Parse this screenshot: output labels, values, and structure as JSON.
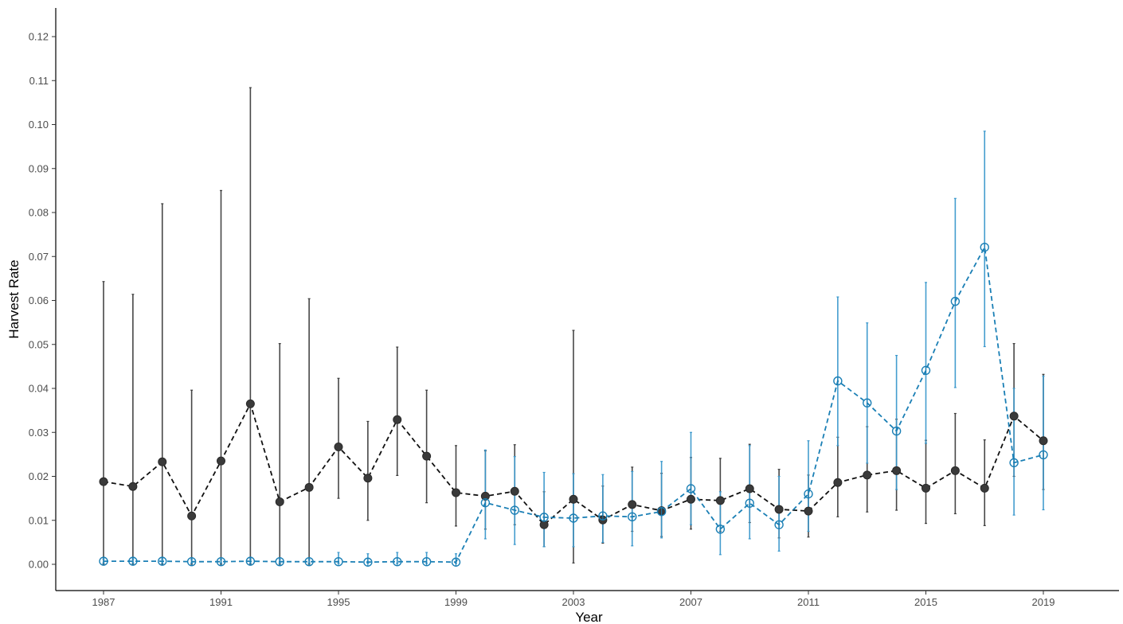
{
  "chart_data": {
    "type": "line",
    "title": "",
    "xlabel": "Year",
    "ylabel": "Harvest Rate",
    "xlim": [
      1986.4,
      1989.0
    ],
    "x_range": [
      1986,
      2022
    ],
    "ylim": [
      -0.006,
      0.126
    ],
    "x_ticks": [
      1987,
      1991,
      1995,
      1999,
      2003,
      2007,
      2011,
      2015,
      2019
    ],
    "x_tick_labels": [
      "1987",
      "1991",
      "1995",
      "1999",
      "2003",
      "2007",
      "2011",
      "2015",
      "2019"
    ],
    "y_ticks": [
      0.0,
      0.01,
      0.02,
      0.03,
      0.04,
      0.05,
      0.06,
      0.07,
      0.08,
      0.09,
      0.1,
      0.11,
      0.12
    ],
    "y_tick_labels": [
      "0.00",
      "0.01",
      "0.02",
      "0.03",
      "0.04",
      "0.05",
      "0.06",
      "0.07",
      "0.08",
      "0.09",
      "0.10",
      "0.11",
      "0.12"
    ],
    "grid": false,
    "legend": "none",
    "series": [
      {
        "color": "#333333",
        "marker": "filled-circle",
        "line_style": "dashed",
        "points": [
          {
            "x": 1987,
            "y": 0.0188,
            "low": 0.0,
            "high": 0.0643
          },
          {
            "x": 1988,
            "y": 0.0177,
            "low": 0.0,
            "high": 0.0614
          },
          {
            "x": 1989,
            "y": 0.0233,
            "low": 0.0,
            "high": 0.082
          },
          {
            "x": 1990,
            "y": 0.011,
            "low": 0.0,
            "high": 0.0396
          },
          {
            "x": 1991,
            "y": 0.0235,
            "low": 0.0,
            "high": 0.085
          },
          {
            "x": 1992,
            "y": 0.0365,
            "low": 0.0,
            "high": 0.1084
          },
          {
            "x": 1993,
            "y": 0.0142,
            "low": 0.0,
            "high": 0.0502
          },
          {
            "x": 1994,
            "y": 0.0175,
            "low": 0.0,
            "high": 0.0604
          },
          {
            "x": 1995,
            "y": 0.0267,
            "low": 0.015,
            "high": 0.0423
          },
          {
            "x": 1996,
            "y": 0.0196,
            "low": 0.01,
            "high": 0.0325
          },
          {
            "x": 1997,
            "y": 0.0329,
            "low": 0.0202,
            "high": 0.0494
          },
          {
            "x": 1998,
            "y": 0.0246,
            "low": 0.014,
            "high": 0.0396
          },
          {
            "x": 1999,
            "y": 0.0163,
            "low": 0.0087,
            "high": 0.027
          },
          {
            "x": 2000,
            "y": 0.0155,
            "low": 0.008,
            "high": 0.0258
          },
          {
            "x": 2001,
            "y": 0.0166,
            "low": 0.009,
            "high": 0.0272
          },
          {
            "x": 2002,
            "y": 0.009,
            "low": 0.004,
            "high": 0.0165
          },
          {
            "x": 2003,
            "y": 0.0148,
            "low": 0.0003,
            "high": 0.0532
          },
          {
            "x": 2004,
            "y": 0.0101,
            "low": 0.0048,
            "high": 0.0178
          },
          {
            "x": 2005,
            "y": 0.0136,
            "low": 0.0075,
            "high": 0.0221
          },
          {
            "x": 2006,
            "y": 0.0122,
            "low": 0.0063,
            "high": 0.0207
          },
          {
            "x": 2007,
            "y": 0.0148,
            "low": 0.008,
            "high": 0.0243
          },
          {
            "x": 2008,
            "y": 0.0145,
            "low": 0.0075,
            "high": 0.0241
          },
          {
            "x": 2009,
            "y": 0.0172,
            "low": 0.0095,
            "high": 0.0273
          },
          {
            "x": 2010,
            "y": 0.0125,
            "low": 0.006,
            "high": 0.0216
          },
          {
            "x": 2011,
            "y": 0.0121,
            "low": 0.0062,
            "high": 0.0203
          },
          {
            "x": 2012,
            "y": 0.0186,
            "low": 0.0108,
            "high": 0.0289
          },
          {
            "x": 2013,
            "y": 0.0203,
            "low": 0.0119,
            "high": 0.0313
          },
          {
            "x": 2014,
            "y": 0.0213,
            "low": 0.0123,
            "high": 0.033
          },
          {
            "x": 2015,
            "y": 0.0173,
            "low": 0.0093,
            "high": 0.0282
          },
          {
            "x": 2016,
            "y": 0.0213,
            "low": 0.0115,
            "high": 0.0343
          },
          {
            "x": 2017,
            "y": 0.0173,
            "low": 0.0088,
            "high": 0.0283
          },
          {
            "x": 2018,
            "y": 0.0337,
            "low": 0.02,
            "high": 0.0502
          },
          {
            "x": 2019,
            "y": 0.0281,
            "low": 0.017,
            "high": 0.0432
          }
        ]
      },
      {
        "color": "#1a7fb5",
        "marker": "open-circle",
        "line_style": "dashed",
        "points": [
          {
            "x": 1987,
            "y": 0.0007,
            "low": 0.0003,
            "high": 0.0012
          },
          {
            "x": 1988,
            "y": 0.0007,
            "low": 0.0003,
            "high": 0.0012
          },
          {
            "x": 1989,
            "y": 0.0007,
            "low": 0.0003,
            "high": 0.0012
          },
          {
            "x": 1990,
            "y": 0.0006,
            "low": 0.0003,
            "high": 0.0011
          },
          {
            "x": 1991,
            "y": 0.0006,
            "low": 0.0003,
            "high": 0.0011
          },
          {
            "x": 1992,
            "y": 0.0007,
            "low": 0.0003,
            "high": 0.0012
          },
          {
            "x": 1993,
            "y": 0.0006,
            "low": 0.0003,
            "high": 0.0011
          },
          {
            "x": 1994,
            "y": 0.0006,
            "low": 0.0003,
            "high": 0.0011
          },
          {
            "x": 1995,
            "y": 0.0006,
            "low": 0.0002,
            "high": 0.0027
          },
          {
            "x": 1996,
            "y": 0.0005,
            "low": 0.0002,
            "high": 0.0024
          },
          {
            "x": 1997,
            "y": 0.0006,
            "low": 0.0002,
            "high": 0.0027
          },
          {
            "x": 1998,
            "y": 0.0006,
            "low": 0.0002,
            "high": 0.0027
          },
          {
            "x": 1999,
            "y": 0.0005,
            "low": 0.0002,
            "high": 0.0024
          },
          {
            "x": 2000,
            "y": 0.014,
            "low": 0.0058,
            "high": 0.026
          },
          {
            "x": 2001,
            "y": 0.0123,
            "low": 0.0045,
            "high": 0.0245
          },
          {
            "x": 2002,
            "y": 0.0107,
            "low": 0.004,
            "high": 0.0209
          },
          {
            "x": 2003,
            "y": 0.0105,
            "low": 0.004,
            "high": 0.0206
          },
          {
            "x": 2004,
            "y": 0.011,
            "low": 0.005,
            "high": 0.0204
          },
          {
            "x": 2005,
            "y": 0.0108,
            "low": 0.0042,
            "high": 0.0211
          },
          {
            "x": 2006,
            "y": 0.012,
            "low": 0.006,
            "high": 0.0234
          },
          {
            "x": 2007,
            "y": 0.0172,
            "low": 0.009,
            "high": 0.03
          },
          {
            "x": 2008,
            "y": 0.008,
            "low": 0.0022,
            "high": 0.0165
          },
          {
            "x": 2009,
            "y": 0.0139,
            "low": 0.0058,
            "high": 0.027
          },
          {
            "x": 2010,
            "y": 0.009,
            "low": 0.003,
            "high": 0.02
          },
          {
            "x": 2011,
            "y": 0.016,
            "low": 0.0075,
            "high": 0.0281
          },
          {
            "x": 2012,
            "y": 0.0417,
            "low": 0.027,
            "high": 0.0608
          },
          {
            "x": 2013,
            "y": 0.0367,
            "low": 0.023,
            "high": 0.0549
          },
          {
            "x": 2014,
            "y": 0.0303,
            "low": 0.017,
            "high": 0.0475
          },
          {
            "x": 2015,
            "y": 0.0441,
            "low": 0.0275,
            "high": 0.0641
          },
          {
            "x": 2016,
            "y": 0.0598,
            "low": 0.0402,
            "high": 0.0832
          },
          {
            "x": 2017,
            "y": 0.0721,
            "low": 0.0495,
            "high": 0.0985
          },
          {
            "x": 2018,
            "y": 0.0231,
            "low": 0.0112,
            "high": 0.04
          },
          {
            "x": 2019,
            "y": 0.0249,
            "low": 0.0124,
            "high": 0.0428
          }
        ]
      }
    ]
  }
}
